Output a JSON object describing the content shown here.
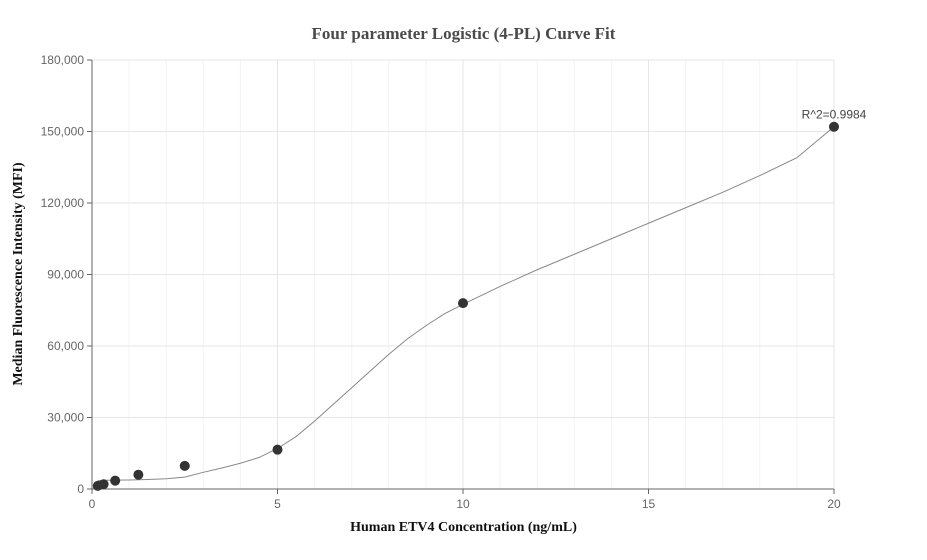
{
  "chart_data": {
    "type": "scatter",
    "title": "Four parameter Logistic (4-PL) Curve Fit",
    "xlabel": "Human ETV4 Concentration (ng/mL)",
    "ylabel": "Median Fluorescence Intensity (MFI)",
    "xlim": [
      0,
      20
    ],
    "ylim": [
      0,
      180000
    ],
    "x_ticks": [
      0,
      5,
      10,
      15,
      20
    ],
    "y_ticks": [
      0,
      30000,
      60000,
      90000,
      120000,
      150000,
      180000
    ],
    "x_tick_labels": [
      "0",
      "5",
      "10",
      "15",
      "20"
    ],
    "y_tick_labels": [
      "0",
      "30,000",
      "60,000",
      "90,000",
      "120,000",
      "150,000",
      "180,000"
    ],
    "grid": true,
    "points": [
      {
        "x": 0.156,
        "y": 1300
      },
      {
        "x": 0.313,
        "y": 2000
      },
      {
        "x": 0.625,
        "y": 3500
      },
      {
        "x": 1.25,
        "y": 6000
      },
      {
        "x": 2.5,
        "y": 9700
      },
      {
        "x": 5,
        "y": 16500
      },
      {
        "x": 10,
        "y": 78000
      },
      {
        "x": 20,
        "y": 152000
      }
    ],
    "fit_curve": [
      {
        "x": 0.156,
        "y": 3500
      },
      {
        "x": 0.5,
        "y": 3700
      },
      {
        "x": 1.0,
        "y": 3800
      },
      {
        "x": 1.5,
        "y": 4000
      },
      {
        "x": 2.0,
        "y": 4300
      },
      {
        "x": 2.5,
        "y": 5000
      },
      {
        "x": 3.0,
        "y": 7000
      },
      {
        "x": 3.5,
        "y": 8800
      },
      {
        "x": 4.0,
        "y": 10800
      },
      {
        "x": 4.5,
        "y": 13200
      },
      {
        "x": 5.0,
        "y": 17000
      },
      {
        "x": 5.5,
        "y": 22000
      },
      {
        "x": 6.0,
        "y": 28500
      },
      {
        "x": 6.5,
        "y": 35500
      },
      {
        "x": 7.0,
        "y": 42500
      },
      {
        "x": 7.5,
        "y": 49500
      },
      {
        "x": 8.0,
        "y": 56500
      },
      {
        "x": 8.5,
        "y": 63000
      },
      {
        "x": 9.0,
        "y": 68500
      },
      {
        "x": 9.5,
        "y": 73500
      },
      {
        "x": 10.0,
        "y": 77500
      },
      {
        "x": 11.0,
        "y": 85000
      },
      {
        "x": 12.0,
        "y": 92000
      },
      {
        "x": 13.0,
        "y": 98500
      },
      {
        "x": 14.0,
        "y": 105000
      },
      {
        "x": 15.0,
        "y": 111500
      },
      {
        "x": 16.0,
        "y": 118000
      },
      {
        "x": 17.0,
        "y": 124500
      },
      {
        "x": 18.0,
        "y": 131500
      },
      {
        "x": 19.0,
        "y": 139000
      },
      {
        "x": 20.0,
        "y": 152000
      }
    ],
    "annotation": {
      "text": "R^2=0.9984",
      "x": 20,
      "y": 152000
    },
    "colors": {
      "points": "#333333",
      "curve": "#888888",
      "grid": "#e6e6e6",
      "axis": "#666666"
    }
  }
}
